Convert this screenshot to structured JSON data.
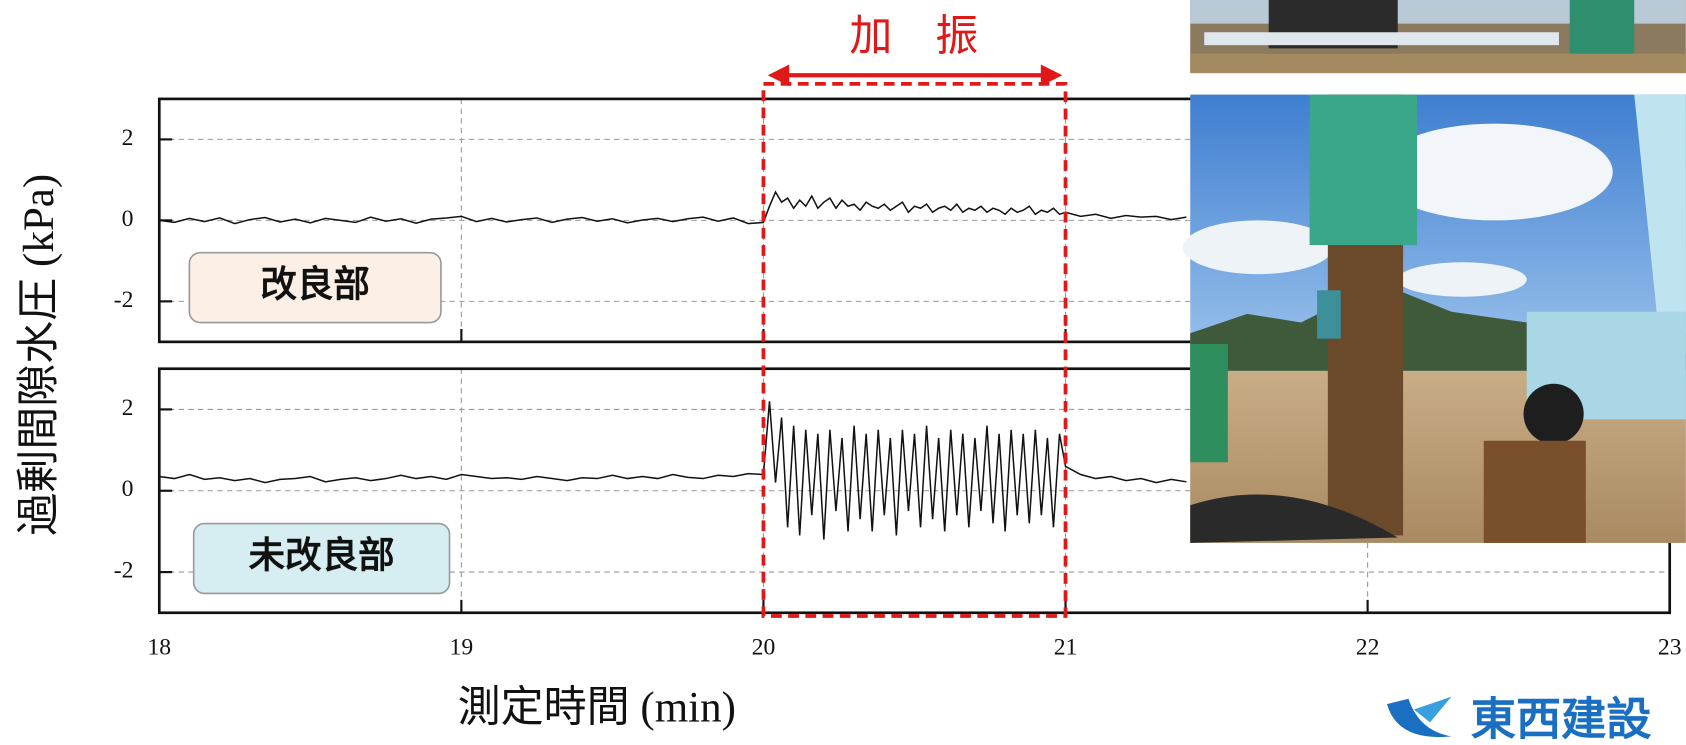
{
  "chart_data": [
    {
      "type": "line",
      "annotation": "加　振",
      "panel_label": "改良部",
      "x": [
        18,
        18.05,
        18.1,
        18.15,
        18.2,
        18.25,
        18.3,
        18.35,
        18.4,
        18.45,
        18.5,
        18.55,
        18.6,
        18.65,
        18.7,
        18.75,
        18.8,
        18.85,
        18.9,
        18.95,
        19,
        19.05,
        19.1,
        19.15,
        19.2,
        19.25,
        19.3,
        19.35,
        19.4,
        19.45,
        19.5,
        19.55,
        19.6,
        19.65,
        19.7,
        19.75,
        19.8,
        19.85,
        19.9,
        19.95,
        20,
        20.02,
        20.04,
        20.06,
        20.08,
        20.1,
        20.12,
        20.14,
        20.16,
        20.18,
        20.2,
        20.22,
        20.24,
        20.26,
        20.28,
        20.3,
        20.32,
        20.34,
        20.36,
        20.38,
        20.4,
        20.42,
        20.44,
        20.46,
        20.48,
        20.5,
        20.52,
        20.54,
        20.56,
        20.58,
        20.6,
        20.62,
        20.64,
        20.66,
        20.68,
        20.7,
        20.72,
        20.74,
        20.76,
        20.78,
        20.8,
        20.82,
        20.84,
        20.86,
        20.88,
        20.9,
        20.92,
        20.94,
        20.96,
        20.98,
        21,
        21.05,
        21.1,
        21.15,
        21.2,
        21.25,
        21.3,
        21.35,
        21.4
      ],
      "series": [
        {
          "color": "#111111",
          "values": [
            0,
            -0.05,
            0.05,
            -0.03,
            0.06,
            -0.08,
            0.02,
            0.07,
            -0.04,
            0.03,
            -0.06,
            0.05,
            0,
            -0.05,
            0.08,
            -0.02,
            0.04,
            -0.07,
            0.03,
            0.06,
            0.1,
            -0.03,
            0.05,
            -0.04,
            0.02,
            0.06,
            -0.05,
            0.03,
            0.07,
            -0.02,
            0.04,
            -0.06,
            0.01,
            0.05,
            -0.03,
            0.04,
            0.08,
            -0.02,
            0.06,
            -0.08,
            -0.05,
            0.35,
            0.7,
            0.45,
            0.55,
            0.3,
            0.5,
            0.35,
            0.6,
            0.3,
            0.45,
            0.55,
            0.3,
            0.5,
            0.35,
            0.4,
            0.25,
            0.45,
            0.35,
            0.3,
            0.4,
            0.25,
            0.35,
            0.45,
            0.2,
            0.35,
            0.3,
            0.4,
            0.2,
            0.3,
            0.35,
            0.25,
            0.4,
            0.2,
            0.3,
            0.25,
            0.35,
            0.2,
            0.3,
            0.25,
            0.15,
            0.3,
            0.2,
            0.25,
            0.35,
            0.15,
            0.25,
            0.2,
            0.3,
            0.15,
            0.2,
            0.1,
            0.15,
            0.05,
            0.12,
            0.08,
            0.1,
            0.02,
            0.08
          ]
        }
      ],
      "xlim": [
        18,
        23
      ],
      "xticks": [
        18,
        19,
        20,
        21,
        22,
        23
      ],
      "ylim": [
        -3,
        3
      ],
      "yticks": [
        -2,
        0,
        2
      ],
      "grid": true
    },
    {
      "type": "line",
      "panel_label": "未改良部",
      "xlabel": "測定時間 (min)",
      "ylabel": "過剰間隙水圧 (kPa)",
      "x": [
        18,
        18.05,
        18.1,
        18.15,
        18.2,
        18.25,
        18.3,
        18.35,
        18.4,
        18.45,
        18.5,
        18.55,
        18.6,
        18.65,
        18.7,
        18.75,
        18.8,
        18.85,
        18.9,
        18.95,
        19,
        19.05,
        19.1,
        19.15,
        19.2,
        19.25,
        19.3,
        19.35,
        19.4,
        19.45,
        19.5,
        19.55,
        19.6,
        19.65,
        19.7,
        19.75,
        19.8,
        19.85,
        19.9,
        19.95,
        20,
        20.02,
        20.04,
        20.06,
        20.08,
        20.1,
        20.12,
        20.14,
        20.16,
        20.18,
        20.2,
        20.22,
        20.24,
        20.26,
        20.28,
        20.3,
        20.32,
        20.34,
        20.36,
        20.38,
        20.4,
        20.42,
        20.44,
        20.46,
        20.48,
        20.5,
        20.52,
        20.54,
        20.56,
        20.58,
        20.6,
        20.62,
        20.64,
        20.66,
        20.68,
        20.7,
        20.72,
        20.74,
        20.76,
        20.78,
        20.8,
        20.82,
        20.84,
        20.86,
        20.88,
        20.9,
        20.92,
        20.94,
        20.96,
        20.98,
        21,
        21.05,
        21.1,
        21.15,
        21.2,
        21.25,
        21.3,
        21.35,
        21.4
      ],
      "series": [
        {
          "color": "#111111",
          "values": [
            0.35,
            0.3,
            0.4,
            0.28,
            0.32,
            0.25,
            0.3,
            0.2,
            0.28,
            0.3,
            0.35,
            0.22,
            0.28,
            0.32,
            0.25,
            0.3,
            0.38,
            0.3,
            0.35,
            0.28,
            0.4,
            0.35,
            0.3,
            0.32,
            0.28,
            0.35,
            0.3,
            0.25,
            0.32,
            0.3,
            0.38,
            0.3,
            0.35,
            0.3,
            0.4,
            0.33,
            0.3,
            0.38,
            0.35,
            0.42,
            0.4,
            2.2,
            0.2,
            1.8,
            -0.9,
            1.6,
            -1.1,
            1.5,
            -0.6,
            1.4,
            -1.2,
            1.5,
            -0.5,
            1.3,
            -1.0,
            1.6,
            -0.7,
            1.4,
            -1.0,
            1.5,
            -0.6,
            1.3,
            -1.1,
            1.5,
            -0.5,
            1.4,
            -0.9,
            1.6,
            -0.7,
            1.3,
            -1.0,
            1.5,
            -0.6,
            1.4,
            -0.9,
            1.3,
            -0.5,
            1.6,
            -0.8,
            1.4,
            -1.0,
            1.5,
            -0.6,
            1.4,
            -0.8,
            1.5,
            -0.6,
            1.3,
            -0.9,
            1.4,
            0.6,
            0.4,
            0.3,
            0.35,
            0.25,
            0.3,
            0.2,
            0.28,
            0.22
          ]
        }
      ],
      "xlim": [
        18,
        23
      ],
      "xticks": [
        18,
        19,
        20,
        21,
        22,
        23
      ],
      "ylim": [
        -3,
        3
      ],
      "yticks": [
        -2,
        0,
        2
      ],
      "grid": true
    }
  ],
  "logo": "東西建設"
}
